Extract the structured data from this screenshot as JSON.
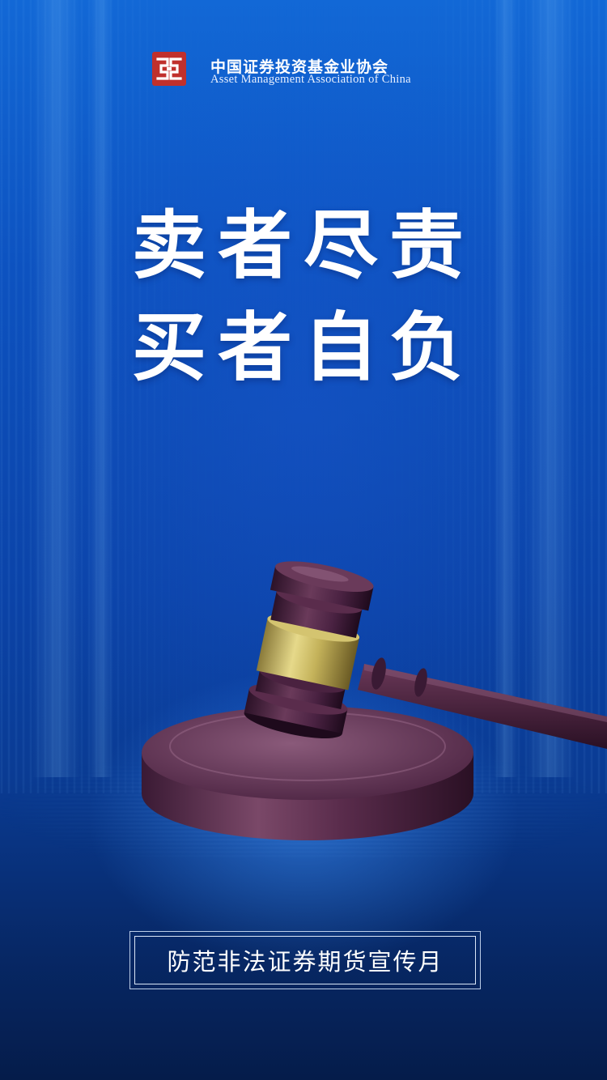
{
  "header": {
    "org_name_zh": "中国证券投资基金业协会",
    "org_name_en": "Asset Management Association of China",
    "logo_icon": "amac-seal-logo-icon",
    "logo_color": "#c0302c"
  },
  "headline": {
    "line1": "卖者尽责",
    "line2": "买者自负"
  },
  "illustration": {
    "icon": "judge-gavel-icon"
  },
  "banner": {
    "text": "防范非法证券期货宣传月"
  },
  "colors": {
    "background_top": "#1268d6",
    "background_bottom": "#051c4a",
    "text": "#ffffff"
  }
}
